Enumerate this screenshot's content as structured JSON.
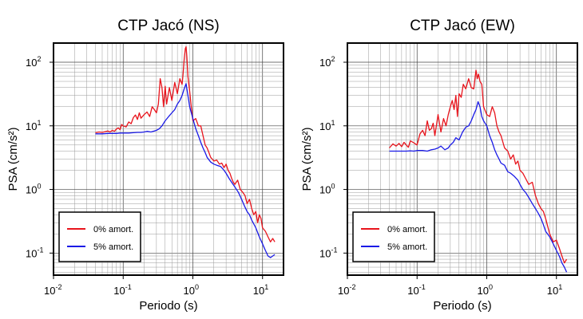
{
  "chart_data": [
    {
      "type": "line",
      "title": "CTP Jacó (NS)",
      "xlabel": "Periodo (s)",
      "ylabel": "PSA (cm/s²)",
      "xlim": [
        0.01,
        20
      ],
      "ylim": [
        0.045,
        200
      ],
      "xscale": "log",
      "yscale": "log",
      "grid": true,
      "legend_position": "bottom-left",
      "x_ticks": [
        0.01,
        0.1,
        1,
        10
      ],
      "y_ticks": [
        0.1,
        1,
        10,
        100
      ],
      "series": [
        {
          "name": "0% amort.",
          "color": "#e8141c",
          "x": [
            0.04,
            0.045,
            0.05,
            0.055,
            0.06,
            0.065,
            0.07,
            0.075,
            0.08,
            0.085,
            0.09,
            0.095,
            0.1,
            0.11,
            0.12,
            0.13,
            0.14,
            0.15,
            0.16,
            0.17,
            0.18,
            0.2,
            0.22,
            0.24,
            0.26,
            0.28,
            0.3,
            0.32,
            0.34,
            0.36,
            0.38,
            0.4,
            0.42,
            0.44,
            0.46,
            0.5,
            0.55,
            0.6,
            0.65,
            0.7,
            0.72,
            0.75,
            0.78,
            0.8,
            0.82,
            0.85,
            0.9,
            0.95,
            1.0,
            1.1,
            1.2,
            1.3,
            1.4,
            1.5,
            1.6,
            1.7,
            1.8,
            1.9,
            2.0,
            2.2,
            2.4,
            2.6,
            2.8,
            3.0,
            3.2,
            3.4,
            3.6,
            3.8,
            4.0,
            4.4,
            4.8,
            5.2,
            5.6,
            6.0,
            6.5,
            7.0,
            7.5,
            8.0,
            8.5,
            9.0,
            9.5,
            10,
            11,
            12,
            13,
            14,
            15
          ],
          "values": [
            7.8,
            8.0,
            7.9,
            8.1,
            8.3,
            8.0,
            8.5,
            8.2,
            8.9,
            9.3,
            8.7,
            10.5,
            10,
            9.6,
            11.5,
            10.8,
            13.5,
            14.8,
            12.6,
            16.0,
            13.2,
            15.0,
            16.5,
            14.0,
            20,
            18,
            16,
            22,
            55,
            40,
            20,
            42,
            22,
            30,
            40,
            25,
            48,
            32,
            55,
            45,
            60,
            110,
            165,
            175,
            120,
            60,
            35,
            20,
            12,
            13,
            10,
            10,
            7,
            5,
            4.5,
            3.8,
            3.2,
            3.0,
            2.8,
            2.9,
            2.5,
            2.6,
            2.2,
            2.5,
            2.0,
            1.8,
            1.5,
            1.3,
            1.2,
            1.4,
            1.0,
            0.9,
            0.8,
            0.6,
            0.7,
            0.5,
            0.4,
            0.45,
            0.3,
            0.4,
            0.35,
            0.25,
            0.22,
            0.18,
            0.15,
            0.17,
            0.15
          ]
        },
        {
          "name": "5% amort.",
          "color": "#1a1ae6",
          "x": [
            0.04,
            0.05,
            0.06,
            0.07,
            0.08,
            0.09,
            0.1,
            0.12,
            0.14,
            0.16,
            0.18,
            0.2,
            0.22,
            0.25,
            0.28,
            0.3,
            0.33,
            0.36,
            0.4,
            0.45,
            0.5,
            0.55,
            0.6,
            0.65,
            0.7,
            0.75,
            0.8,
            0.85,
            0.9,
            1.0,
            1.1,
            1.2,
            1.3,
            1.4,
            1.5,
            1.6,
            1.8,
            2.0,
            2.2,
            2.5,
            2.8,
            3.0,
            3.3,
            3.6,
            4.0,
            4.5,
            5.0,
            5.5,
            6.0,
            6.5,
            7.0,
            8.0,
            9.0,
            10,
            11,
            12,
            13,
            14,
            15
          ],
          "values": [
            7.5,
            7.5,
            7.6,
            7.6,
            7.6,
            7.7,
            7.7,
            7.7,
            7.8,
            7.9,
            7.9,
            8.0,
            8.2,
            8.0,
            8.3,
            8.5,
            9.0,
            10.0,
            12.0,
            14.0,
            16.0,
            18.0,
            22.0,
            25.0,
            30.0,
            38.0,
            46.0,
            30.0,
            20.0,
            13.0,
            9.0,
            7.0,
            5.5,
            4.5,
            3.8,
            3.2,
            2.7,
            2.5,
            2.4,
            2.3,
            2.0,
            1.8,
            1.5,
            1.3,
            1.1,
            0.9,
            0.7,
            0.55,
            0.45,
            0.4,
            0.33,
            0.25,
            0.18,
            0.14,
            0.11,
            0.09,
            0.085,
            0.09,
            0.095
          ]
        }
      ]
    },
    {
      "type": "line",
      "title": "CTP Jacó (EW)",
      "xlabel": "Periodo (s)",
      "ylabel": "PSA (cm/s²)",
      "xlim": [
        0.01,
        20
      ],
      "ylim": [
        0.045,
        200
      ],
      "xscale": "log",
      "yscale": "log",
      "grid": true,
      "legend_position": "bottom-left",
      "x_ticks": [
        0.01,
        0.1,
        1,
        10
      ],
      "y_ticks": [
        0.1,
        1,
        10,
        100
      ],
      "series": [
        {
          "name": "0% amort.",
          "color": "#e8141c",
          "x": [
            0.04,
            0.045,
            0.05,
            0.055,
            0.06,
            0.065,
            0.07,
            0.075,
            0.08,
            0.09,
            0.1,
            0.11,
            0.12,
            0.13,
            0.14,
            0.15,
            0.16,
            0.17,
            0.18,
            0.2,
            0.22,
            0.24,
            0.26,
            0.28,
            0.3,
            0.32,
            0.34,
            0.36,
            0.38,
            0.4,
            0.43,
            0.46,
            0.5,
            0.55,
            0.6,
            0.65,
            0.7,
            0.73,
            0.76,
            0.8,
            0.85,
            0.9,
            1.0,
            1.1,
            1.2,
            1.3,
            1.4,
            1.5,
            1.6,
            1.8,
            2.0,
            2.2,
            2.4,
            2.6,
            2.8,
            3.0,
            3.3,
            3.6,
            4.0,
            4.5,
            5.0,
            5.5,
            6.0,
            6.5,
            7.0,
            8.0,
            9.0,
            10,
            11,
            12,
            13,
            14
          ],
          "values": [
            4.5,
            5.2,
            4.8,
            5.3,
            4.7,
            5.5,
            5.0,
            4.6,
            5.8,
            5.4,
            5.0,
            7.5,
            8.5,
            7.0,
            12.0,
            8.5,
            9.0,
            11.0,
            7.0,
            15.0,
            8.0,
            13.0,
            10.0,
            15.0,
            20.0,
            25.0,
            18.0,
            30.0,
            14.0,
            32.0,
            28.0,
            45.0,
            38.0,
            55.0,
            40.0,
            38.0,
            75.0,
            55.0,
            65.0,
            50.0,
            45.0,
            20.0,
            15.0,
            14.0,
            20.0,
            16.0,
            10.0,
            8.0,
            7.0,
            4.5,
            4.0,
            3.0,
            3.5,
            2.5,
            2.8,
            2.0,
            1.8,
            1.5,
            1.2,
            1.3,
            0.8,
            0.6,
            0.5,
            0.45,
            0.35,
            0.2,
            0.15,
            0.16,
            0.12,
            0.09,
            0.07,
            0.08
          ]
        },
        {
          "name": "5% amort.",
          "color": "#1a1ae6",
          "x": [
            0.04,
            0.05,
            0.06,
            0.07,
            0.08,
            0.09,
            0.1,
            0.12,
            0.14,
            0.16,
            0.18,
            0.2,
            0.22,
            0.25,
            0.28,
            0.3,
            0.33,
            0.36,
            0.4,
            0.45,
            0.5,
            0.55,
            0.6,
            0.65,
            0.7,
            0.75,
            0.8,
            0.85,
            0.9,
            1.0,
            1.1,
            1.2,
            1.3,
            1.4,
            1.5,
            1.6,
            1.8,
            2.0,
            2.2,
            2.5,
            2.8,
            3.0,
            3.3,
            3.6,
            4.0,
            4.5,
            5.0,
            5.5,
            6.0,
            6.5,
            7.0,
            8.0,
            9.0,
            10,
            11,
            12,
            13,
            14
          ],
          "values": [
            4.0,
            4.0,
            4.0,
            4.0,
            4.05,
            4.0,
            4.1,
            4.1,
            4.0,
            4.2,
            4.3,
            4.5,
            4.8,
            4.2,
            4.5,
            5.0,
            5.5,
            6.5,
            6.0,
            8.0,
            9.5,
            10.0,
            12.0,
            15.0,
            18.0,
            24.0,
            20.0,
            14.0,
            12.0,
            10.0,
            7.0,
            5.5,
            4.2,
            3.5,
            3.0,
            2.6,
            2.4,
            1.9,
            1.8,
            1.6,
            1.4,
            1.2,
            1.0,
            0.9,
            0.75,
            0.6,
            0.5,
            0.42,
            0.35,
            0.28,
            0.22,
            0.18,
            0.14,
            0.11,
            0.09,
            0.07,
            0.06,
            0.05
          ]
        }
      ]
    }
  ]
}
